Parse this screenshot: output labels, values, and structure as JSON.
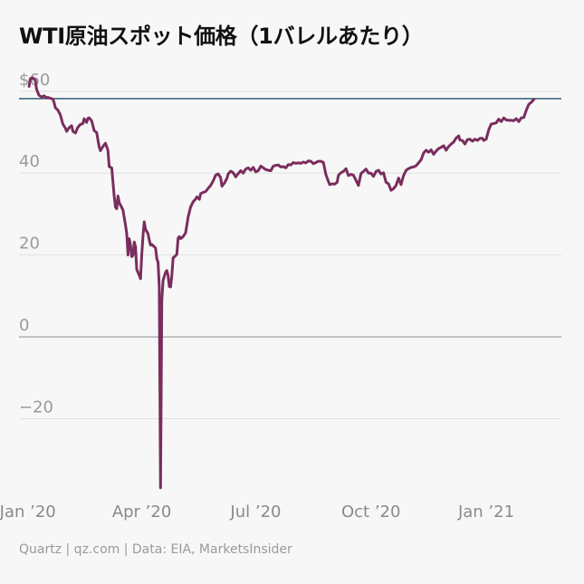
{
  "title": "WTI原油スポット価格（1バレルあたり）",
  "footer": "Quartz | qz.com | Data: EIA, MarketsInsider",
  "colors": {
    "series": "#7a2d5e",
    "reference_line": "#1f4f66",
    "zero_line": "#999999",
    "grid": "#e0e0e0",
    "background": "#f7f7f7"
  },
  "chart_data": {
    "type": "line",
    "title": "WTI原油スポット価格（1バレルあたり）",
    "xlabel": "",
    "ylabel": "",
    "ylim": [
      -37.6,
      63.5
    ],
    "xlim": [
      -7,
      426
    ],
    "grid": true,
    "y_ticks": [
      {
        "value": 60,
        "label": "$60"
      },
      {
        "value": 40,
        "label": "40"
      },
      {
        "value": 20,
        "label": "20"
      },
      {
        "value": 0,
        "label": "0"
      },
      {
        "value": -20,
        "label": "−20"
      }
    ],
    "x_ticks": [
      {
        "value": 0,
        "label": "Jan ’20"
      },
      {
        "value": 91,
        "label": "Apr ’20"
      },
      {
        "value": 182,
        "label": "Jul ’20"
      },
      {
        "value": 274,
        "label": "Oct ’20"
      },
      {
        "value": 366,
        "label": "Jan ’21"
      }
    ],
    "x_unit": "days from Jan 1, 2020",
    "reference_line": 58.2,
    "series": [
      {
        "points": [
          [
            1,
            61.2
          ],
          [
            2,
            63.1
          ],
          [
            4,
            63.3
          ],
          [
            6,
            62.7
          ],
          [
            7,
            60.5
          ],
          [
            9,
            59.0
          ],
          [
            11,
            58.6
          ],
          [
            13,
            58.9
          ],
          [
            15,
            58.4
          ],
          [
            16,
            58.5
          ],
          [
            18,
            58.3
          ],
          [
            20,
            58.1
          ],
          [
            21,
            57.3
          ],
          [
            22,
            56.0
          ],
          [
            24,
            55.4
          ],
          [
            26,
            54.2
          ],
          [
            28,
            52.0
          ],
          [
            30,
            51.0
          ],
          [
            31,
            50.2
          ],
          [
            33,
            51.1
          ],
          [
            35,
            51.6
          ],
          [
            36,
            50.2
          ],
          [
            38,
            49.8
          ],
          [
            40,
            51.2
          ],
          [
            42,
            51.9
          ],
          [
            44,
            52.1
          ],
          [
            45,
            53.3
          ],
          [
            47,
            52.4
          ],
          [
            48,
            53.4
          ],
          [
            49,
            53.5
          ],
          [
            51,
            52.8
          ],
          [
            53,
            50.4
          ],
          [
            55,
            49.9
          ],
          [
            57,
            46.4
          ],
          [
            58,
            45.5
          ],
          [
            60,
            46.5
          ],
          [
            62,
            47.3
          ],
          [
            64,
            45.6
          ],
          [
            65,
            41.6
          ],
          [
            67,
            41.3
          ],
          [
            69,
            34.4
          ],
          [
            70,
            31.7
          ],
          [
            71,
            31.3
          ],
          [
            72,
            34.4
          ],
          [
            73,
            32.8
          ],
          [
            74,
            32.2
          ],
          [
            76,
            31.0
          ],
          [
            78,
            27.3
          ],
          [
            79,
            25.2
          ],
          [
            80,
            20.0
          ],
          [
            81,
            24.0
          ],
          [
            82,
            22.5
          ],
          [
            83,
            19.6
          ],
          [
            84,
            19.9
          ],
          [
            85,
            23.2
          ],
          [
            86,
            22.0
          ],
          [
            87,
            16.5
          ],
          [
            89,
            15.0
          ],
          [
            90,
            14.2
          ],
          [
            91,
            20.2
          ],
          [
            92,
            24.9
          ],
          [
            93,
            28.1
          ],
          [
            94,
            26.3
          ],
          [
            96,
            25.2
          ],
          [
            97,
            23.6
          ],
          [
            98,
            22.4
          ],
          [
            99,
            22.6
          ],
          [
            101,
            22.0
          ],
          [
            102,
            21.7
          ],
          [
            103,
            19.1
          ],
          [
            104,
            18.2
          ],
          [
            105,
            12.2
          ],
          [
            106,
            -36.9
          ],
          [
            107,
            8.9
          ],
          [
            108,
            13.8
          ],
          [
            110,
            15.8
          ],
          [
            111,
            16.2
          ],
          [
            112,
            15.0
          ],
          [
            113,
            12.3
          ],
          [
            114,
            12.2
          ],
          [
            115,
            15.0
          ],
          [
            116,
            19.3
          ],
          [
            118,
            19.8
          ],
          [
            119,
            20.2
          ],
          [
            120,
            24.1
          ],
          [
            121,
            24.5
          ],
          [
            122,
            24.0
          ],
          [
            124,
            24.5
          ],
          [
            126,
            25.4
          ],
          [
            128,
            29.3
          ],
          [
            130,
            31.7
          ],
          [
            132,
            33.0
          ],
          [
            134,
            33.7
          ],
          [
            135,
            34.2
          ],
          [
            137,
            33.6
          ],
          [
            138,
            35.0
          ],
          [
            140,
            35.3
          ],
          [
            142,
            35.5
          ],
          [
            144,
            36.3
          ],
          [
            146,
            37.0
          ],
          [
            148,
            38.1
          ],
          [
            150,
            39.5
          ],
          [
            152,
            39.8
          ],
          [
            154,
            38.9
          ],
          [
            155,
            36.8
          ],
          [
            157,
            37.6
          ],
          [
            159,
            38.7
          ],
          [
            160,
            39.8
          ],
          [
            162,
            40.5
          ],
          [
            164,
            40.1
          ],
          [
            166,
            39.1
          ],
          [
            168,
            39.9
          ],
          [
            170,
            40.6
          ],
          [
            172,
            40.0
          ],
          [
            174,
            41.0
          ],
          [
            176,
            41.3
          ],
          [
            178,
            40.7
          ],
          [
            180,
            41.4
          ],
          [
            182,
            40.3
          ],
          [
            184,
            40.6
          ],
          [
            186,
            41.7
          ],
          [
            188,
            41.3
          ],
          [
            190,
            40.9
          ],
          [
            192,
            40.7
          ],
          [
            194,
            40.6
          ],
          [
            196,
            41.7
          ],
          [
            198,
            41.9
          ],
          [
            200,
            42.0
          ],
          [
            202,
            41.5
          ],
          [
            204,
            41.6
          ],
          [
            206,
            41.3
          ],
          [
            208,
            42.1
          ],
          [
            210,
            42.0
          ],
          [
            212,
            42.6
          ],
          [
            214,
            42.4
          ],
          [
            216,
            42.5
          ],
          [
            218,
            42.4
          ],
          [
            220,
            42.7
          ],
          [
            222,
            42.5
          ],
          [
            224,
            43.0
          ],
          [
            226,
            42.9
          ],
          [
            228,
            42.3
          ],
          [
            230,
            42.6
          ],
          [
            232,
            42.9
          ],
          [
            234,
            42.9
          ],
          [
            236,
            42.6
          ],
          [
            238,
            39.7
          ],
          [
            239,
            38.8
          ],
          [
            241,
            37.2
          ],
          [
            243,
            37.4
          ],
          [
            245,
            37.3
          ],
          [
            247,
            37.8
          ],
          [
            248,
            39.5
          ],
          [
            250,
            40.1
          ],
          [
            252,
            40.4
          ],
          [
            254,
            41.1
          ],
          [
            256,
            39.4
          ],
          [
            258,
            39.7
          ],
          [
            260,
            39.5
          ],
          [
            262,
            38.3
          ],
          [
            264,
            37.0
          ],
          [
            266,
            39.9
          ],
          [
            268,
            40.4
          ],
          [
            270,
            41.0
          ],
          [
            272,
            40.0
          ],
          [
            274,
            40.0
          ],
          [
            276,
            39.2
          ],
          [
            278,
            40.4
          ],
          [
            280,
            40.7
          ],
          [
            282,
            39.8
          ],
          [
            284,
            40.1
          ],
          [
            286,
            37.8
          ],
          [
            288,
            37.4
          ],
          [
            290,
            35.8
          ],
          [
            292,
            36.2
          ],
          [
            294,
            37.0
          ],
          [
            296,
            38.8
          ],
          [
            298,
            37.2
          ],
          [
            300,
            39.4
          ],
          [
            302,
            40.7
          ],
          [
            304,
            41.1
          ],
          [
            306,
            41.4
          ],
          [
            308,
            41.5
          ],
          [
            310,
            41.8
          ],
          [
            312,
            42.5
          ],
          [
            314,
            43.3
          ],
          [
            316,
            44.9
          ],
          [
            318,
            45.6
          ],
          [
            320,
            45.1
          ],
          [
            322,
            45.7
          ],
          [
            324,
            44.6
          ],
          [
            326,
            45.4
          ],
          [
            328,
            46.0
          ],
          [
            330,
            46.3
          ],
          [
            332,
            46.7
          ],
          [
            334,
            45.6
          ],
          [
            336,
            46.5
          ],
          [
            338,
            47.1
          ],
          [
            340,
            47.6
          ],
          [
            342,
            48.6
          ],
          [
            344,
            49.1
          ],
          [
            345,
            48.1
          ],
          [
            347,
            48.0
          ],
          [
            349,
            47.1
          ],
          [
            351,
            48.2
          ],
          [
            353,
            48.3
          ],
          [
            355,
            47.8
          ],
          [
            357,
            48.3
          ],
          [
            359,
            48.0
          ],
          [
            361,
            48.5
          ],
          [
            363,
            48.5
          ],
          [
            364,
            48.0
          ],
          [
            366,
            48.3
          ],
          [
            368,
            50.6
          ],
          [
            370,
            52.0
          ],
          [
            372,
            52.1
          ],
          [
            374,
            52.3
          ],
          [
            376,
            53.2
          ],
          [
            378,
            52.6
          ],
          [
            380,
            53.5
          ],
          [
            382,
            53.0
          ],
          [
            384,
            52.9
          ],
          [
            386,
            52.9
          ],
          [
            388,
            52.8
          ],
          [
            390,
            53.3
          ],
          [
            392,
            52.6
          ],
          [
            394,
            53.5
          ],
          [
            396,
            53.6
          ],
          [
            398,
            55.4
          ],
          [
            400,
            56.8
          ],
          [
            402,
            57.3
          ],
          [
            404,
            58.0
          ]
        ]
      }
    ]
  }
}
